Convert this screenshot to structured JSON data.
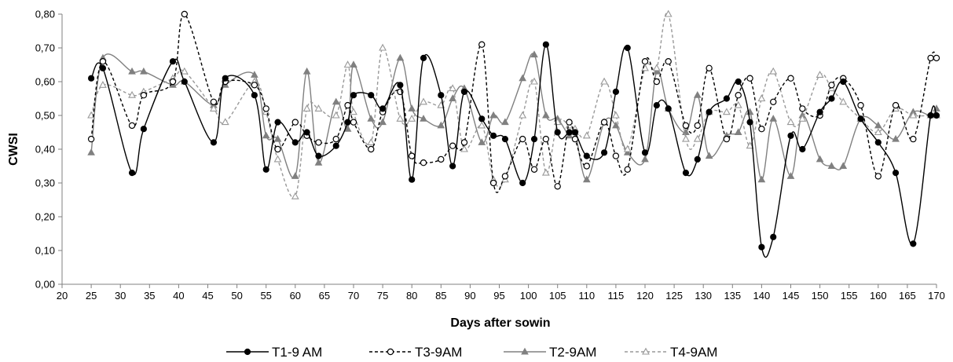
{
  "chart_data": {
    "type": "line",
    "xlabel": "Days after sowin",
    "ylabel": "CWSI",
    "xlim": [
      20,
      170
    ],
    "ylim": [
      0,
      0.8
    ],
    "x_tick_labels": [
      "20",
      "25",
      "30",
      "35",
      "40",
      "45",
      "50",
      "55",
      "60",
      "65",
      "70",
      "75",
      "80",
      "85",
      "90",
      "95",
      "100",
      "105",
      "110",
      "115",
      "120",
      "125",
      "130",
      "135",
      "140",
      "145",
      "150",
      "155",
      "160",
      "165",
      "170"
    ],
    "y_tick_labels": [
      "0,00",
      "0,10",
      "0,20",
      "0,30",
      "0,40",
      "0,50",
      "0,60",
      "0,70",
      "0,80"
    ],
    "grid": false,
    "legend_position": "bottom",
    "series": [
      {
        "name": "T1-9 AM",
        "color": "#000000",
        "dash": "solid",
        "marker": "filled-circle",
        "x": [
          25,
          27,
          32,
          34,
          39,
          41,
          46,
          48,
          53,
          55,
          57,
          60,
          62,
          64,
          67,
          69,
          70,
          73,
          75,
          78,
          80,
          82,
          85,
          87,
          89,
          92,
          94,
          96,
          99,
          101,
          103,
          105,
          107,
          108,
          110,
          113,
          115,
          117,
          120,
          122,
          124,
          127,
          129,
          131,
          134,
          136,
          138,
          140,
          142,
          145,
          147,
          150,
          152,
          154,
          157,
          160,
          163,
          166,
          169,
          170
        ],
        "y": [
          0.61,
          0.64,
          0.33,
          0.46,
          0.66,
          0.6,
          0.42,
          0.61,
          0.56,
          0.34,
          0.48,
          0.42,
          0.45,
          0.38,
          0.41,
          0.48,
          0.56,
          0.56,
          0.52,
          0.59,
          0.31,
          0.67,
          0.56,
          0.35,
          0.57,
          0.49,
          0.44,
          0.43,
          0.3,
          0.43,
          0.71,
          0.45,
          0.45,
          0.45,
          0.38,
          0.39,
          0.57,
          0.7,
          0.39,
          0.53,
          0.52,
          0.33,
          0.37,
          0.51,
          0.55,
          0.6,
          0.48,
          0.11,
          0.14,
          0.44,
          0.4,
          0.51,
          0.55,
          0.6,
          0.49,
          0.42,
          0.33,
          0.12,
          0.5,
          0.5
        ]
      },
      {
        "name": "T3-9AM",
        "color": "#000000",
        "dash": "dashed",
        "marker": "open-circle",
        "x": [
          25,
          27,
          32,
          34,
          39,
          41,
          46,
          48,
          53,
          55,
          57,
          60,
          62,
          64,
          67,
          69,
          70,
          73,
          75,
          78,
          80,
          82,
          85,
          87,
          89,
          92,
          94,
          96,
          99,
          101,
          103,
          105,
          107,
          108,
          110,
          113,
          115,
          117,
          120,
          122,
          124,
          127,
          129,
          131,
          134,
          136,
          138,
          140,
          142,
          145,
          147,
          150,
          152,
          154,
          157,
          160,
          163,
          166,
          169,
          170
        ],
        "y": [
          0.43,
          0.66,
          0.47,
          0.56,
          0.6,
          0.8,
          0.54,
          0.6,
          0.59,
          0.52,
          0.4,
          0.48,
          0.44,
          0.42,
          0.43,
          0.53,
          0.48,
          0.4,
          0.51,
          0.57,
          0.38,
          0.36,
          0.37,
          0.41,
          0.42,
          0.71,
          0.3,
          0.32,
          0.43,
          0.34,
          0.43,
          0.29,
          0.48,
          0.43,
          0.35,
          0.48,
          0.38,
          0.34,
          0.66,
          0.6,
          0.66,
          0.47,
          0.47,
          0.64,
          0.43,
          0.56,
          0.61,
          0.46,
          0.54,
          0.61,
          0.52,
          0.5,
          0.59,
          0.61,
          0.53,
          0.32,
          0.53,
          0.43,
          0.67,
          0.67
        ]
      },
      {
        "name": "T2-9AM",
        "color": "#808080",
        "dash": "solid",
        "marker": "filled-triangle",
        "x": [
          25,
          27,
          32,
          34,
          39,
          41,
          46,
          48,
          53,
          55,
          57,
          60,
          62,
          64,
          67,
          69,
          70,
          73,
          75,
          78,
          80,
          82,
          85,
          87,
          89,
          92,
          94,
          96,
          99,
          101,
          103,
          105,
          107,
          108,
          110,
          113,
          115,
          117,
          120,
          122,
          124,
          127,
          129,
          131,
          134,
          136,
          138,
          140,
          142,
          145,
          147,
          150,
          152,
          154,
          157,
          160,
          163,
          166,
          169,
          170
        ],
        "y": [
          0.39,
          0.67,
          0.63,
          0.63,
          0.59,
          0.6,
          0.53,
          0.59,
          0.62,
          0.44,
          0.43,
          0.32,
          0.63,
          0.36,
          0.54,
          0.46,
          0.65,
          0.49,
          0.48,
          0.67,
          0.52,
          0.49,
          0.47,
          0.55,
          0.58,
          0.42,
          0.5,
          0.48,
          0.61,
          0.68,
          0.5,
          0.49,
          0.44,
          0.45,
          0.31,
          0.48,
          0.47,
          0.39,
          0.37,
          0.63,
          0.52,
          0.45,
          0.56,
          0.38,
          0.44,
          0.45,
          0.51,
          0.31,
          0.49,
          0.32,
          0.5,
          0.37,
          0.35,
          0.35,
          0.49,
          0.47,
          0.43,
          0.51,
          0.5,
          0.52
        ]
      },
      {
        "name": "T4-9AM",
        "color": "#999999",
        "dash": "dashed",
        "marker": "open-triangle",
        "x": [
          25,
          27,
          32,
          34,
          39,
          41,
          46,
          48,
          53,
          55,
          57,
          60,
          62,
          64,
          67,
          69,
          70,
          73,
          75,
          78,
          80,
          82,
          85,
          87,
          89,
          92,
          94,
          96,
          99,
          101,
          103,
          105,
          107,
          108,
          110,
          113,
          115,
          117,
          120,
          122,
          124,
          127,
          129,
          131,
          134,
          136,
          138,
          140,
          142,
          145,
          147,
          150,
          152,
          154,
          157,
          160,
          163,
          166,
          169,
          170
        ],
        "y": [
          0.5,
          0.59,
          0.56,
          0.57,
          0.61,
          0.63,
          0.52,
          0.48,
          0.6,
          0.51,
          0.37,
          0.26,
          0.52,
          0.52,
          0.5,
          0.65,
          0.51,
          0.42,
          0.7,
          0.49,
          0.49,
          0.54,
          0.53,
          0.58,
          0.4,
          0.47,
          0.31,
          0.31,
          0.5,
          0.6,
          0.33,
          0.48,
          0.47,
          0.46,
          0.44,
          0.6,
          0.5,
          0.4,
          0.64,
          0.64,
          0.8,
          0.43,
          0.43,
          0.51,
          0.51,
          0.53,
          0.41,
          0.55,
          0.63,
          0.48,
          0.49,
          0.62,
          0.58,
          0.54,
          0.49,
          0.45,
          0.52,
          0.5,
          0.5,
          0.5
        ]
      }
    ]
  }
}
